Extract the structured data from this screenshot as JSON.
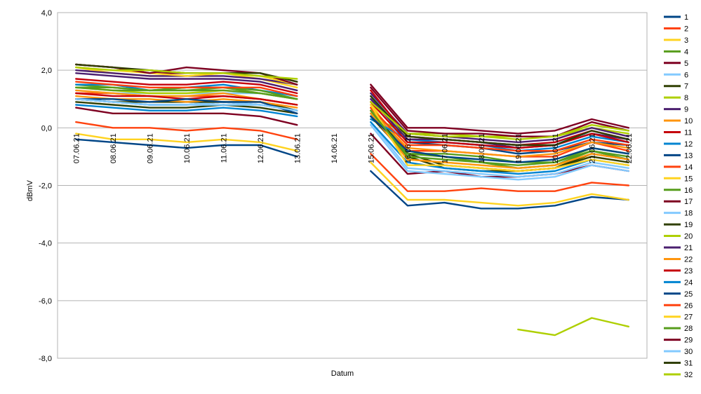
{
  "chart_data": {
    "type": "line",
    "title": "",
    "xlabel": "Datum",
    "ylabel": "dBmV",
    "ylim": [
      -8,
      4
    ],
    "yticks": [
      "4,0",
      "2,0",
      "0,0",
      "-2,0",
      "-4,0",
      "-6,0",
      "-8,0"
    ],
    "ytick_values": [
      4,
      2,
      0,
      -2,
      -4,
      -6,
      -8
    ],
    "grid": "horizontal",
    "legend_position": "right",
    "categories": [
      "07.06.21",
      "08.06.21",
      "09.06.21",
      "10.06.21",
      "11.06.21",
      "12.06.21",
      "13.06.21",
      "14.06.21",
      "15.06.21",
      "16.06.21",
      "17.06.21",
      "18.06.21",
      "19.06.21",
      "20.06.21",
      "21.06.21",
      "22.06.21"
    ],
    "series": [
      {
        "name": "1",
        "color": "#004586",
        "values": [
          1.0,
          0.9,
          0.8,
          0.8,
          0.9,
          0.8,
          0.6,
          null,
          1.1,
          -0.5,
          -0.6,
          -0.7,
          -0.9,
          -0.8,
          -0.5,
          -0.6
        ]
      },
      {
        "name": "2",
        "color": "#ff420e",
        "values": [
          1.2,
          1.2,
          1.1,
          1.1,
          1.1,
          1.0,
          0.8,
          null,
          0.8,
          -0.8,
          -0.8,
          -0.9,
          -1.0,
          -1.0,
          -0.5,
          -0.8
        ]
      },
      {
        "name": "3",
        "color": "#ffd320",
        "values": [
          2.1,
          1.9,
          1.8,
          1.8,
          1.9,
          1.7,
          1.4,
          null,
          0.9,
          -1.1,
          -1.2,
          -1.3,
          -1.4,
          -1.3,
          -1.0,
          -1.2
        ]
      },
      {
        "name": "4",
        "color": "#579d1c",
        "values": [
          1.5,
          1.4,
          1.3,
          1.3,
          1.4,
          1.2,
          1.0,
          null,
          0.7,
          -0.9,
          -1.0,
          -1.2,
          -1.4,
          -1.3,
          -0.8,
          -1.1
        ]
      },
      {
        "name": "5",
        "color": "#7e0021",
        "values": [
          2.2,
          2.1,
          1.9,
          1.9,
          1.9,
          1.9,
          1.6,
          null,
          1.5,
          0.0,
          0.0,
          -0.1,
          -0.2,
          -0.1,
          0.3,
          0.0
        ]
      },
      {
        "name": "6",
        "color": "#83caff",
        "values": [
          1.3,
          1.2,
          1.2,
          1.2,
          1.2,
          1.2,
          1.0,
          null,
          0.5,
          -0.4,
          -0.4,
          -0.5,
          -0.6,
          -0.5,
          -0.2,
          -0.4
        ]
      },
      {
        "name": "7",
        "color": "#314004",
        "values": [
          0.9,
          0.8,
          0.7,
          0.7,
          0.8,
          0.7,
          0.5,
          null,
          0.6,
          -0.9,
          -1.3,
          -1.4,
          -1.5,
          -1.4,
          -0.9,
          -1.1
        ]
      },
      {
        "name": "8",
        "color": "#aecf00",
        "values": [
          1.4,
          1.3,
          1.2,
          1.2,
          1.3,
          1.2,
          1.0,
          null,
          0.4,
          -0.2,
          -0.2,
          -0.3,
          -0.3,
          -0.3,
          0.0,
          -0.2
        ]
      },
      {
        "name": "9",
        "color": "#4b1f6f",
        "values": [
          1.9,
          1.8,
          1.7,
          1.7,
          1.7,
          1.6,
          1.3,
          null,
          1.2,
          -0.2,
          -0.3,
          -0.4,
          -0.5,
          -0.4,
          0.0,
          -0.3
        ]
      },
      {
        "name": "10",
        "color": "#ff950e",
        "values": [
          1.3,
          1.2,
          1.1,
          1.1,
          1.2,
          1.0,
          0.8,
          null,
          0.6,
          -0.7,
          -0.8,
          -0.9,
          -1.0,
          -0.9,
          -0.5,
          -0.7
        ]
      },
      {
        "name": "11",
        "color": "#c5000b",
        "values": [
          1.7,
          1.6,
          1.5,
          1.5,
          1.6,
          1.5,
          1.2,
          null,
          1.3,
          -0.3,
          -0.4,
          -0.5,
          -0.6,
          -0.5,
          -0.1,
          -0.4
        ]
      },
      {
        "name": "12",
        "color": "#0084d1",
        "values": [
          1.5,
          1.5,
          1.3,
          1.4,
          1.5,
          1.3,
          1.1,
          null,
          0.3,
          -0.4,
          -0.5,
          -0.6,
          -0.8,
          -0.7,
          -0.3,
          -0.5
        ]
      },
      {
        "name": "13",
        "color": "#004586",
        "values": [
          -0.4,
          -0.5,
          -0.6,
          -0.7,
          -0.6,
          -0.6,
          -1.0,
          null,
          -1.5,
          -2.7,
          -2.6,
          -2.8,
          -2.8,
          -2.7,
          -2.4,
          -2.5
        ]
      },
      {
        "name": "14",
        "color": "#ff420e",
        "values": [
          0.2,
          0.0,
          0.0,
          -0.1,
          0.0,
          -0.1,
          -0.4,
          null,
          -0.9,
          -2.2,
          -2.2,
          -2.1,
          -2.2,
          -2.2,
          -1.9,
          -2.0
        ]
      },
      {
        "name": "15",
        "color": "#ffd320",
        "values": [
          -0.2,
          -0.4,
          -0.4,
          -0.5,
          -0.4,
          -0.5,
          -0.8,
          null,
          -1.2,
          -2.5,
          -2.5,
          -2.6,
          -2.7,
          -2.6,
          -2.3,
          -2.5
        ]
      },
      {
        "name": "16",
        "color": "#579d1c",
        "values": [
          1.4,
          1.4,
          1.3,
          1.4,
          1.4,
          1.3,
          1.0,
          null,
          0.5,
          -0.9,
          -0.9,
          -1.0,
          -1.2,
          -1.2,
          -0.7,
          -0.9
        ]
      },
      {
        "name": "17",
        "color": "#7e0021",
        "values": [
          0.7,
          0.5,
          0.5,
          0.5,
          0.5,
          0.4,
          0.1,
          null,
          -0.2,
          -1.6,
          -1.5,
          -1.7,
          -1.7,
          -1.6,
          -1.3,
          -1.5
        ]
      },
      {
        "name": "18",
        "color": "#83caff",
        "values": [
          1.0,
          0.9,
          0.8,
          0.8,
          0.9,
          0.8,
          0.6,
          null,
          0.2,
          -1.4,
          -1.5,
          -1.6,
          -1.7,
          -1.6,
          -1.2,
          -1.4
        ]
      },
      {
        "name": "19",
        "color": "#314004",
        "values": [
          1.0,
          0.9,
          0.9,
          0.9,
          0.9,
          0.9,
          0.6,
          null,
          0.4,
          -1.0,
          -1.4,
          -1.5,
          -1.5,
          -1.4,
          -1.0,
          -1.2
        ]
      },
      {
        "name": "20",
        "color": "#aecf00",
        "values": [
          null,
          null,
          null,
          null,
          null,
          null,
          null,
          null,
          null,
          null,
          null,
          null,
          -7.0,
          -7.2,
          -6.6,
          -6.9
        ]
      },
      {
        "name": "21",
        "color": "#4b1f6f",
        "values": [
          2.0,
          1.9,
          1.8,
          1.8,
          1.8,
          1.7,
          1.5,
          null,
          1.0,
          -0.4,
          -0.4,
          -0.5,
          -0.7,
          -0.6,
          -0.2,
          -0.4
        ]
      },
      {
        "name": "22",
        "color": "#ff950e",
        "values": [
          1.1,
          1.0,
          1.0,
          0.9,
          1.0,
          0.9,
          0.7,
          null,
          0.5,
          -1.1,
          -1.2,
          -1.3,
          -1.4,
          -1.3,
          -0.9,
          -1.1
        ]
      },
      {
        "name": "23",
        "color": "#c5000b",
        "values": [
          1.2,
          1.1,
          1.1,
          1.0,
          1.1,
          1.0,
          0.8,
          null,
          0.9,
          -0.5,
          -0.5,
          -0.6,
          -0.7,
          -0.6,
          -0.2,
          -0.5
        ]
      },
      {
        "name": "24",
        "color": "#0084d1",
        "values": [
          0.8,
          0.7,
          0.6,
          0.6,
          0.7,
          0.6,
          0.4,
          null,
          0.2,
          -1.2,
          -1.4,
          -1.5,
          -1.6,
          -1.5,
          -1.1,
          -1.3
        ]
      },
      {
        "name": "25",
        "color": "#004586",
        "values": [
          1.0,
          1.0,
          0.9,
          1.0,
          0.9,
          0.9,
          0.5,
          null,
          0.4,
          -0.8,
          -1.0,
          -1.1,
          -1.2,
          -1.1,
          -0.7,
          -0.9
        ]
      },
      {
        "name": "26",
        "color": "#ff420e",
        "values": [
          1.6,
          1.5,
          1.4,
          1.4,
          1.4,
          1.4,
          1.1,
          null,
          0.7,
          -0.6,
          -0.6,
          -0.7,
          -0.8,
          -0.8,
          -0.4,
          -0.6
        ]
      },
      {
        "name": "27",
        "color": "#ffd320",
        "values": [
          2.1,
          2.0,
          1.9,
          1.8,
          1.9,
          1.8,
          1.5,
          null,
          0.8,
          -1.3,
          -1.3,
          -1.4,
          -1.5,
          -1.4,
          -1.1,
          -1.3
        ]
      },
      {
        "name": "28",
        "color": "#579d1c",
        "values": [
          1.4,
          1.3,
          1.3,
          1.3,
          1.3,
          1.2,
          1.0,
          null,
          0.6,
          -1.0,
          -1.1,
          -1.2,
          -1.3,
          -1.2,
          -0.8,
          -1.0
        ]
      },
      {
        "name": "29",
        "color": "#7e0021",
        "values": [
          2.2,
          2.1,
          1.9,
          2.1,
          2.0,
          1.9,
          1.5,
          null,
          1.4,
          -0.1,
          -0.2,
          -0.2,
          -0.3,
          -0.3,
          0.2,
          -0.1
        ]
      },
      {
        "name": "30",
        "color": "#83caff",
        "values": [
          1.0,
          0.9,
          0.8,
          0.8,
          0.8,
          0.8,
          0.6,
          null,
          0.1,
          -1.5,
          -1.6,
          -1.7,
          -1.8,
          -1.7,
          -1.3,
          -1.5
        ]
      },
      {
        "name": "31",
        "color": "#314004",
        "values": [
          2.2,
          2.1,
          2.0,
          1.9,
          1.9,
          1.9,
          1.6,
          null,
          1.1,
          -0.3,
          -0.4,
          -0.5,
          -0.6,
          -0.6,
          -0.1,
          -0.4
        ]
      },
      {
        "name": "32",
        "color": "#aecf00",
        "values": [
          2.1,
          2.0,
          2.0,
          1.9,
          1.9,
          1.8,
          1.7,
          null,
          0.9,
          -0.2,
          -0.3,
          -0.3,
          -0.4,
          -0.3,
          0.1,
          -0.1
        ]
      }
    ]
  }
}
